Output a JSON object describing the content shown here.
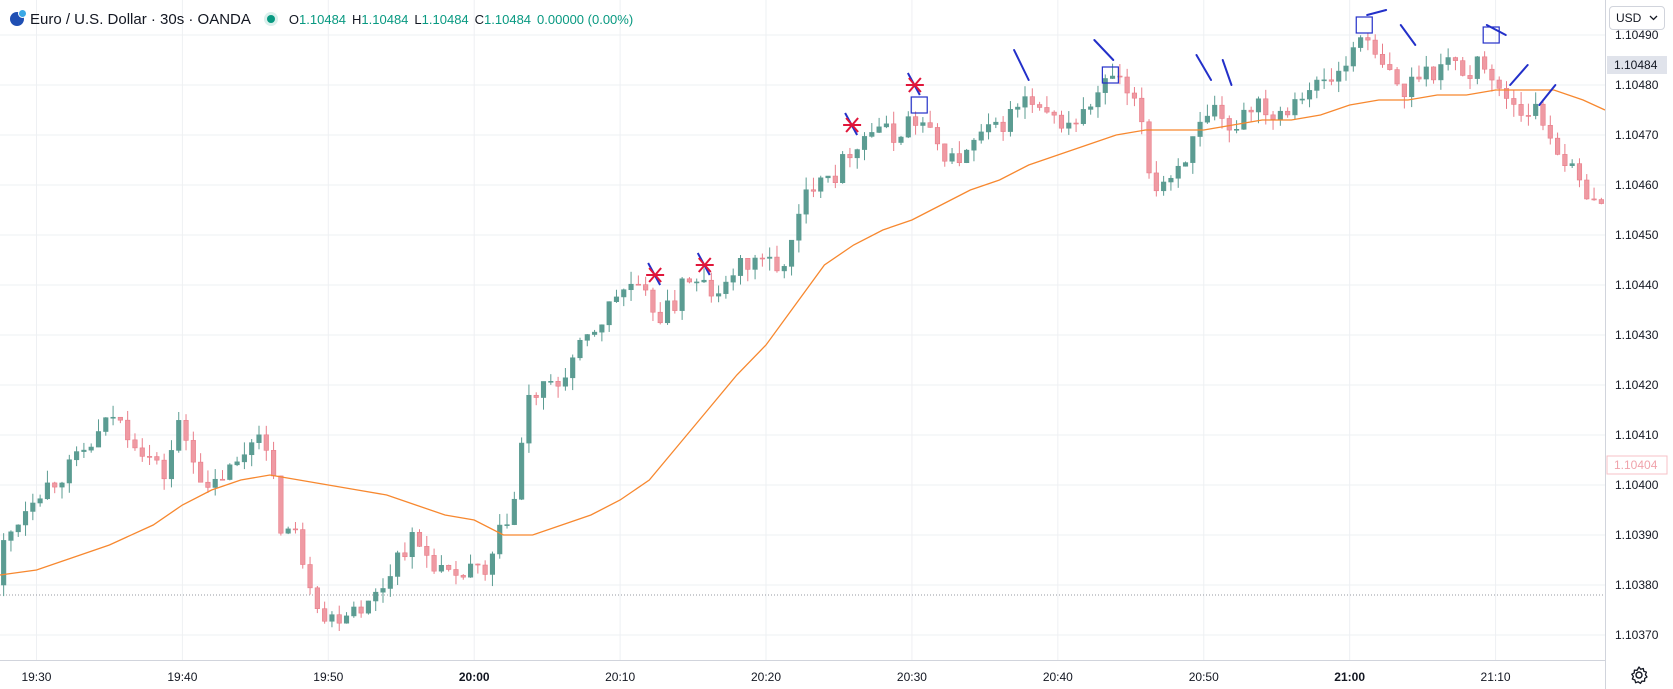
{
  "legend": {
    "symbol": "Euro / U.S. Dollar · 30s · OANDA",
    "open_label": "O",
    "open": "1.10484",
    "high_label": "H",
    "high": "1.10484",
    "low_label": "L",
    "low": "1.10484",
    "close_label": "C",
    "close": "1.10484",
    "change": "0.00000 (0.00%)"
  },
  "currency": {
    "label": "USD",
    "dropdown_icon": "chevron-down-icon"
  },
  "settings": {
    "icon": "gear-icon"
  },
  "colors": {
    "up": "#089981",
    "down": "#f23645",
    "up_body": "#5b9c92",
    "down_body": "#ef9aa3",
    "ma": "#f7882f",
    "grid": "#eef0f3",
    "text": "#131722",
    "marker_blue": "#2330c9",
    "marker_red": "#e0163a"
  },
  "chart_data": {
    "type": "candlestick",
    "title": "Euro / U.S. Dollar · 30s · OANDA",
    "ylim": [
      1.10365,
      1.10497
    ],
    "y_ticks": [
      "1.10490",
      "1.10480",
      "1.10470",
      "1.10460",
      "1.10450",
      "1.10440",
      "1.10430",
      "1.10420",
      "1.10410",
      "1.10400",
      "1.10390",
      "1.10380",
      "1.10370"
    ],
    "x_ticks": [
      {
        "label": "19:30",
        "t": 1170,
        "bold": false
      },
      {
        "label": "19:40",
        "t": 1180,
        "bold": false
      },
      {
        "label": "19:50",
        "t": 1190,
        "bold": false
      },
      {
        "label": "20:00",
        "t": 1200,
        "bold": true
      },
      {
        "label": "20:10",
        "t": 1210,
        "bold": false
      },
      {
        "label": "20:20",
        "t": 1220,
        "bold": false
      },
      {
        "label": "20:30",
        "t": 1230,
        "bold": false
      },
      {
        "label": "20:40",
        "t": 1240,
        "bold": false
      },
      {
        "label": "20:50",
        "t": 1250,
        "bold": false
      },
      {
        "label": "21:00",
        "t": 1260,
        "bold": true
      },
      {
        "label": "21:10",
        "t": 1270,
        "bold": false
      }
    ],
    "time_start": 1167.5,
    "time_end": 1277.5,
    "price_labels": [
      {
        "label": "1.10484",
        "price": 1.10484,
        "style": "current"
      },
      {
        "label": "1.10404",
        "price": 1.10404,
        "style": "faded"
      }
    ],
    "dotted_level": 1.10378,
    "anchors": [
      [
        1167.5,
        1.1038
      ],
      [
        1168,
        1.10388
      ],
      [
        1170,
        1.10398
      ],
      [
        1172,
        1.10402
      ],
      [
        1174,
        1.10408
      ],
      [
        1175.5,
        1.10414
      ],
      [
        1177,
        1.10409
      ],
      [
        1179,
        1.10402
      ],
      [
        1180,
        1.10412
      ],
      [
        1181,
        1.10406
      ],
      [
        1182,
        1.10398
      ],
      [
        1183,
        1.10402
      ],
      [
        1184,
        1.10404
      ],
      [
        1185,
        1.10409
      ],
      [
        1185.5,
        1.10412
      ],
      [
        1186.5,
        1.104
      ],
      [
        1187,
        1.10392
      ],
      [
        1188,
        1.1039
      ],
      [
        1189,
        1.10381
      ],
      [
        1190,
        1.10373
      ],
      [
        1191,
        1.10374
      ],
      [
        1192,
        1.10376
      ],
      [
        1193,
        1.10376
      ],
      [
        1194,
        1.1038
      ],
      [
        1195,
        1.10386
      ],
      [
        1196,
        1.10389
      ],
      [
        1197,
        1.10386
      ],
      [
        1198,
        1.10383
      ],
      [
        1199,
        1.1038
      ],
      [
        1200,
        1.10384
      ],
      [
        1201,
        1.10381
      ],
      [
        1202,
        1.1039
      ],
      [
        1203,
        1.10397
      ],
      [
        1203.5,
        1.10408
      ],
      [
        1204,
        1.10417
      ],
      [
        1205,
        1.10419
      ],
      [
        1206,
        1.1042
      ],
      [
        1207,
        1.10425
      ],
      [
        1208,
        1.10429
      ],
      [
        1209,
        1.10433
      ],
      [
        1210,
        1.10438
      ],
      [
        1211,
        1.1044
      ],
      [
        1212,
        1.10437
      ],
      [
        1213,
        1.10434
      ],
      [
        1214,
        1.10436
      ],
      [
        1214.5,
        1.10442
      ],
      [
        1215,
        1.1044
      ],
      [
        1216,
        1.1044
      ],
      [
        1217,
        1.10437
      ],
      [
        1218,
        1.10443
      ],
      [
        1219,
        1.10444
      ],
      [
        1220,
        1.10446
      ],
      [
        1221,
        1.10442
      ],
      [
        1222,
        1.10448
      ],
      [
        1223,
        1.10458
      ],
      [
        1224,
        1.10463
      ],
      [
        1225,
        1.10462
      ],
      [
        1226,
        1.10467
      ],
      [
        1227,
        1.1047
      ],
      [
        1228,
        1.10472
      ],
      [
        1229,
        1.10469
      ],
      [
        1230,
        1.10473
      ],
      [
        1231,
        1.10472
      ],
      [
        1232,
        1.10468
      ],
      [
        1233,
        1.10465
      ],
      [
        1234,
        1.10466
      ],
      [
        1235,
        1.1047
      ],
      [
        1236,
        1.10471
      ],
      [
        1237,
        1.10474
      ],
      [
        1238,
        1.10477
      ],
      [
        1239,
        1.10474
      ],
      [
        1240,
        1.10473
      ],
      [
        1241,
        1.10472
      ],
      [
        1242,
        1.10474
      ],
      [
        1243,
        1.10478
      ],
      [
        1244,
        1.10482
      ],
      [
        1245,
        1.10478
      ],
      [
        1246,
        1.10473
      ],
      [
        1246.5,
        1.10463
      ],
      [
        1247,
        1.1046
      ],
      [
        1248,
        1.10462
      ],
      [
        1249,
        1.10466
      ],
      [
        1250,
        1.10471
      ],
      [
        1251,
        1.10474
      ],
      [
        1252,
        1.1047
      ],
      [
        1253,
        1.10475
      ],
      [
        1254,
        1.10477
      ],
      [
        1255,
        1.10474
      ],
      [
        1256,
        1.10476
      ],
      [
        1257,
        1.10479
      ],
      [
        1258,
        1.1048
      ],
      [
        1259,
        1.10481
      ],
      [
        1260,
        1.10484
      ],
      [
        1261,
        1.10491
      ],
      [
        1262,
        1.10485
      ],
      [
        1263,
        1.10482
      ],
      [
        1264,
        1.10478
      ],
      [
        1265,
        1.10483
      ],
      [
        1266,
        1.10483
      ],
      [
        1267,
        1.10485
      ],
      [
        1268,
        1.10483
      ],
      [
        1268.5,
        1.10481
      ],
      [
        1269,
        1.10487
      ],
      [
        1270,
        1.1048
      ],
      [
        1271,
        1.10478
      ],
      [
        1272,
        1.10475
      ],
      [
        1273,
        1.10475
      ],
      [
        1274,
        1.1047
      ],
      [
        1275,
        1.10465
      ],
      [
        1276,
        1.1046
      ],
      [
        1277,
        1.10458
      ],
      [
        1277.5,
        1.10455
      ]
    ],
    "ma": [
      [
        1167.5,
        1.10382
      ],
      [
        1170,
        1.10383
      ],
      [
        1172,
        1.10385
      ],
      [
        1175,
        1.10388
      ],
      [
        1178,
        1.10392
      ],
      [
        1180,
        1.10396
      ],
      [
        1182,
        1.10399
      ],
      [
        1184,
        1.10401
      ],
      [
        1186,
        1.10402
      ],
      [
        1188,
        1.10401
      ],
      [
        1190,
        1.104
      ],
      [
        1192,
        1.10399
      ],
      [
        1194,
        1.10398
      ],
      [
        1196,
        1.10396
      ],
      [
        1198,
        1.10394
      ],
      [
        1200,
        1.10393
      ],
      [
        1202,
        1.1039
      ],
      [
        1204,
        1.1039
      ],
      [
        1206,
        1.10392
      ],
      [
        1208,
        1.10394
      ],
      [
        1210,
        1.10397
      ],
      [
        1212,
        1.10401
      ],
      [
        1214,
        1.10408
      ],
      [
        1216,
        1.10415
      ],
      [
        1218,
        1.10422
      ],
      [
        1220,
        1.10428
      ],
      [
        1222,
        1.10436
      ],
      [
        1224,
        1.10444
      ],
      [
        1226,
        1.10448
      ],
      [
        1228,
        1.10451
      ],
      [
        1230,
        1.10453
      ],
      [
        1232,
        1.10456
      ],
      [
        1234,
        1.10459
      ],
      [
        1236,
        1.10461
      ],
      [
        1238,
        1.10464
      ],
      [
        1240,
        1.10466
      ],
      [
        1242,
        1.10468
      ],
      [
        1244,
        1.1047
      ],
      [
        1246,
        1.10471
      ],
      [
        1248,
        1.10471
      ],
      [
        1250,
        1.10471
      ],
      [
        1252,
        1.10472
      ],
      [
        1254,
        1.10473
      ],
      [
        1256,
        1.10473
      ],
      [
        1258,
        1.10474
      ],
      [
        1260,
        1.10476
      ],
      [
        1262,
        1.10477
      ],
      [
        1264,
        1.10477
      ],
      [
        1266,
        1.10478
      ],
      [
        1268,
        1.10478
      ],
      [
        1270,
        1.10479
      ],
      [
        1272,
        1.10479
      ],
      [
        1274,
        1.10479
      ],
      [
        1276,
        1.10477
      ],
      [
        1277.5,
        1.10475
      ]
    ],
    "markers": [
      {
        "type": "red-star",
        "t": 1212.4,
        "p": 1.10442
      },
      {
        "type": "red-star",
        "t": 1215.8,
        "p": 1.10444
      },
      {
        "type": "red-star",
        "t": 1225.9,
        "p": 1.10472
      },
      {
        "type": "red-star",
        "t": 1230.2,
        "p": 1.1048
      },
      {
        "type": "blue-slash",
        "t1": 1237.0,
        "p1": 1.10487,
        "t2": 1238.0,
        "p2": 1.10481
      },
      {
        "type": "blue-slash",
        "t1": 1242.5,
        "p1": 1.10489,
        "t2": 1243.8,
        "p2": 1.10485
      },
      {
        "type": "blue-slash",
        "t1": 1249.5,
        "p1": 1.10486,
        "t2": 1250.5,
        "p2": 1.10481
      },
      {
        "type": "blue-slash",
        "t1": 1251.3,
        "p1": 1.10485,
        "t2": 1251.9,
        "p2": 1.1048
      },
      {
        "type": "blue-slash",
        "t1": 1261.2,
        "p1": 1.10494,
        "t2": 1262.5,
        "p2": 1.10495
      },
      {
        "type": "blue-slash",
        "t1": 1263.5,
        "p1": 1.10492,
        "t2": 1264.5,
        "p2": 1.10488
      },
      {
        "type": "blue-slash",
        "t1": 1269.4,
        "p1": 1.10492,
        "t2": 1270.7,
        "p2": 1.1049
      },
      {
        "type": "blue-slash",
        "t1": 1271.0,
        "p1": 1.1048,
        "t2": 1272.2,
        "p2": 1.10484
      },
      {
        "type": "blue-slash",
        "t1": 1273.0,
        "p1": 1.10476,
        "t2": 1274.1,
        "p2": 1.1048
      },
      {
        "type": "box",
        "t": 1230.5,
        "p": 1.10476
      },
      {
        "type": "box",
        "t": 1243.6,
        "p": 1.10482
      },
      {
        "type": "box",
        "t": 1261.0,
        "p": 1.10492
      },
      {
        "type": "box",
        "t": 1269.7,
        "p": 1.1049
      }
    ]
  }
}
